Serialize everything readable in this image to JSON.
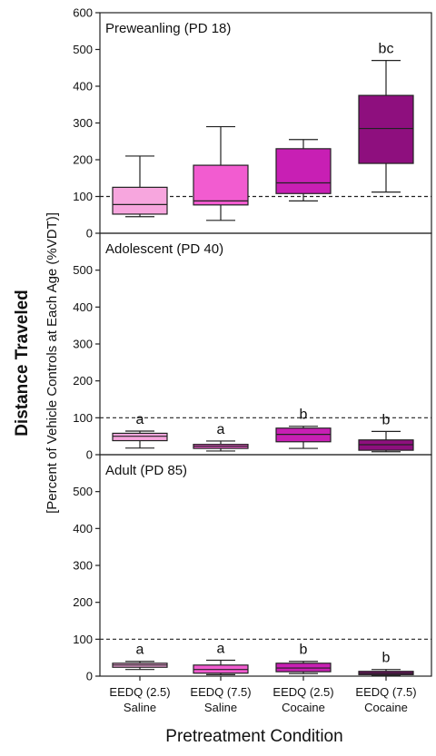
{
  "chart_data": {
    "type": "box",
    "ylabel_main": "Distance Traveled",
    "ylabel_sub": "[Percent of Vehicle Controls at Each Age (%VDT)]",
    "xlabel": "Pretreatment Condition",
    "categories": [
      {
        "line1": "EEDQ (2.5)",
        "line2": "Saline"
      },
      {
        "line1": "EEDQ (7.5)",
        "line2": "Saline"
      },
      {
        "line1": "EEDQ (2.5)",
        "line2": "Cocaine"
      },
      {
        "line1": "EEDQ (7.5)",
        "line2": "Cocaine"
      }
    ],
    "colors": [
      "#f7a6de",
      "#f25cd0",
      "#c81fb4",
      "#8e0f7e"
    ],
    "reference_line": 100,
    "panels": [
      {
        "title": "Preweanling (PD 18)",
        "ylim": [
          0,
          600
        ],
        "yticks": [
          "0",
          "100",
          "200",
          "300",
          "400",
          "500",
          "600"
        ],
        "boxes": [
          {
            "min": 45,
            "q1": 52,
            "median": 78,
            "q3": 125,
            "max": 210,
            "letter": ""
          },
          {
            "min": 35,
            "q1": 77,
            "median": 88,
            "q3": 185,
            "max": 290,
            "letter": ""
          },
          {
            "min": 88,
            "q1": 108,
            "median": 137,
            "q3": 230,
            "max": 255,
            "letter": ""
          },
          {
            "min": 112,
            "q1": 190,
            "median": 285,
            "q3": 375,
            "max": 470,
            "letter": "bc"
          }
        ]
      },
      {
        "title": "Adolescent (PD 40)",
        "ylim": [
          0,
          600
        ],
        "yticks": [
          "0",
          "100",
          "200",
          "300",
          "400",
          "500"
        ],
        "boxes": [
          {
            "min": 18,
            "q1": 38,
            "median": 50,
            "q3": 58,
            "max": 64,
            "letter": "a"
          },
          {
            "min": 10,
            "q1": 17,
            "median": 23,
            "q3": 28,
            "max": 37,
            "letter": "a"
          },
          {
            "min": 17,
            "q1": 35,
            "median": 55,
            "q3": 72,
            "max": 77,
            "letter": "b"
          },
          {
            "min": 8,
            "q1": 12,
            "median": 27,
            "q3": 40,
            "max": 63,
            "letter": "b"
          }
        ]
      },
      {
        "title": "Adult (PD 85)",
        "ylim": [
          0,
          600
        ],
        "yticks": [
          "0",
          "100",
          "200",
          "300",
          "400",
          "500"
        ],
        "boxes": [
          {
            "min": 18,
            "q1": 24,
            "median": 30,
            "q3": 35,
            "max": 40,
            "letter": "a"
          },
          {
            "min": 4,
            "q1": 8,
            "median": 18,
            "q3": 30,
            "max": 43,
            "letter": "a"
          },
          {
            "min": 7,
            "q1": 12,
            "median": 22,
            "q3": 35,
            "max": 40,
            "letter": "b"
          },
          {
            "min": 2,
            "q1": 4,
            "median": 8,
            "q3": 13,
            "max": 18,
            "letter": "b"
          }
        ]
      }
    ]
  }
}
